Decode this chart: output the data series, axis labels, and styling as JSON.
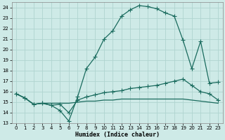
{
  "xlabel": "Humidex (Indice chaleur)",
  "xlim": [
    -0.5,
    23.5
  ],
  "ylim": [
    13,
    24.5
  ],
  "yticks": [
    13,
    14,
    15,
    16,
    17,
    18,
    19,
    20,
    21,
    22,
    23,
    24
  ],
  "xticks": [
    0,
    1,
    2,
    3,
    4,
    5,
    6,
    7,
    8,
    9,
    10,
    11,
    12,
    13,
    14,
    15,
    16,
    17,
    18,
    19,
    20,
    21,
    22,
    23
  ],
  "bg_color": "#ceeae7",
  "grid_color": "#afd4d0",
  "line_color": "#1a6b5e",
  "line_width": 0.9,
  "marker": "+",
  "marker_size": 4,
  "curve1_x": [
    0,
    1,
    2,
    3,
    4,
    5,
    6,
    7,
    8,
    9,
    10,
    11,
    12,
    13,
    14,
    15,
    16,
    17,
    18,
    19,
    20,
    21,
    22,
    23
  ],
  "curve1_y": [
    15.8,
    15.4,
    14.8,
    14.9,
    14.7,
    14.2,
    13.2,
    15.5,
    18.2,
    19.3,
    21.0,
    21.8,
    23.2,
    23.8,
    24.2,
    24.1,
    23.9,
    23.5,
    23.2,
    20.9,
    18.2,
    20.8,
    16.8,
    16.9
  ],
  "curve2_x": [
    0,
    1,
    2,
    3,
    4,
    5,
    6,
    7,
    8,
    9,
    10,
    11,
    12,
    13,
    14,
    15,
    16,
    17,
    18,
    19,
    20,
    21,
    22,
    23
  ],
  "curve2_y": [
    15.8,
    15.4,
    14.8,
    14.9,
    14.7,
    14.8,
    14.0,
    15.2,
    15.5,
    15.7,
    15.9,
    16.0,
    16.1,
    16.3,
    16.4,
    16.5,
    16.6,
    16.8,
    17.0,
    17.2,
    16.6,
    16.0,
    15.8,
    15.2
  ],
  "curve3_x": [
    0,
    1,
    2,
    3,
    4,
    5,
    6,
    7,
    8,
    9,
    10,
    11,
    12,
    13,
    14,
    15,
    16,
    17,
    18,
    19,
    20,
    21,
    22,
    23
  ],
  "curve3_y": [
    15.8,
    15.4,
    14.8,
    14.9,
    14.9,
    14.9,
    14.9,
    15.0,
    15.1,
    15.1,
    15.2,
    15.2,
    15.3,
    15.3,
    15.3,
    15.3,
    15.3,
    15.3,
    15.3,
    15.3,
    15.2,
    15.1,
    15.0,
    14.9
  ]
}
